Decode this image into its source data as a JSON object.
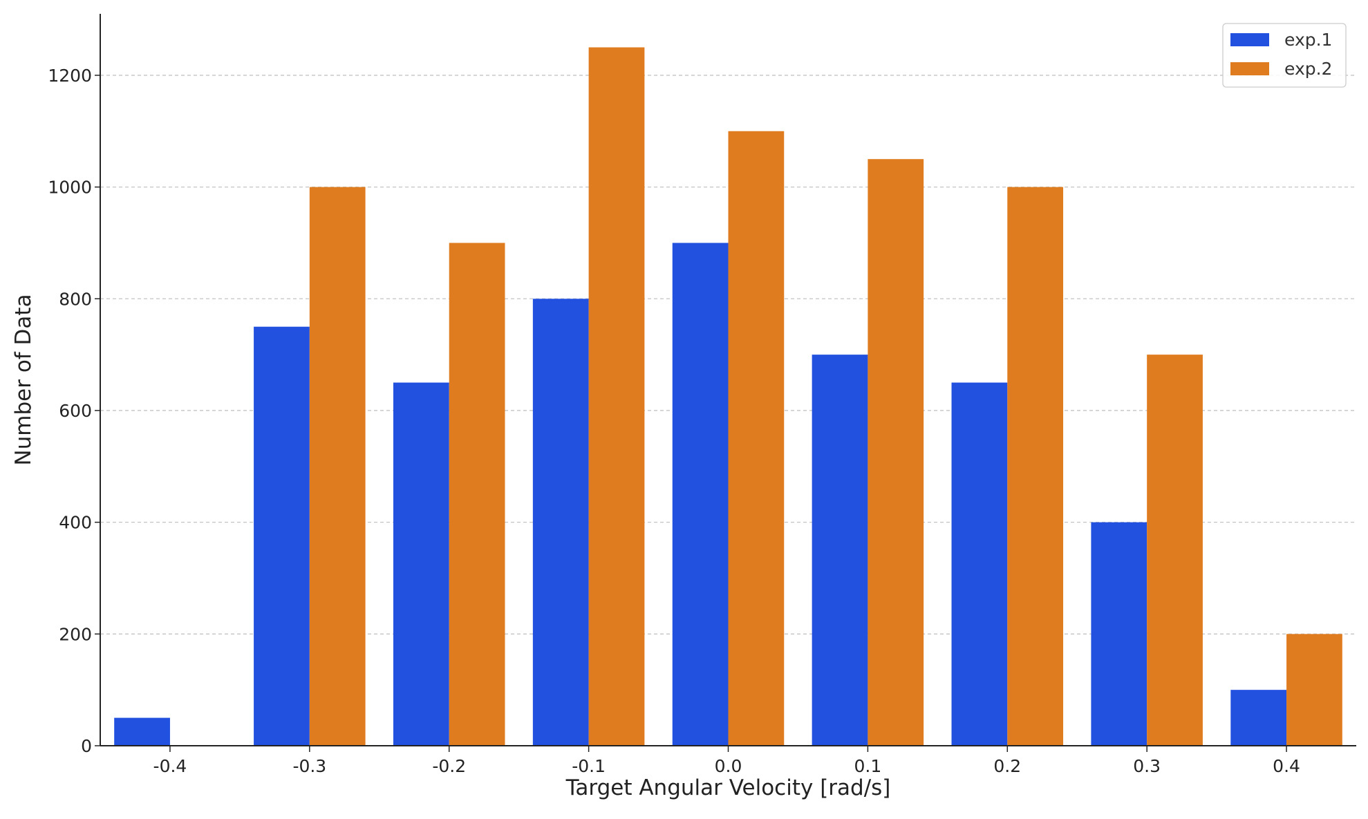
{
  "chart_data": {
    "type": "bar",
    "title": "",
    "xlabel": "Target Angular Velocity [rad/s]",
    "ylabel": "Number of Data",
    "categories": [
      "-0.4",
      "-0.3",
      "-0.2",
      "-0.1",
      "0.0",
      "0.1",
      "0.2",
      "0.3",
      "0.4"
    ],
    "series": [
      {
        "name": "exp.1",
        "color": "#2251e0",
        "values": [
          50,
          750,
          650,
          800,
          900,
          700,
          650,
          400,
          100
        ]
      },
      {
        "name": "exp.2",
        "color": "#e07c20",
        "values": [
          0,
          1000,
          900,
          1250,
          1100,
          1050,
          1000,
          700,
          200
        ]
      }
    ],
    "ylim": [
      0,
      1310
    ],
    "yticks": [
      0,
      200,
      400,
      600,
      800,
      1000,
      1200
    ],
    "grid": "horizontal dashed",
    "legend_position": "top-right"
  }
}
